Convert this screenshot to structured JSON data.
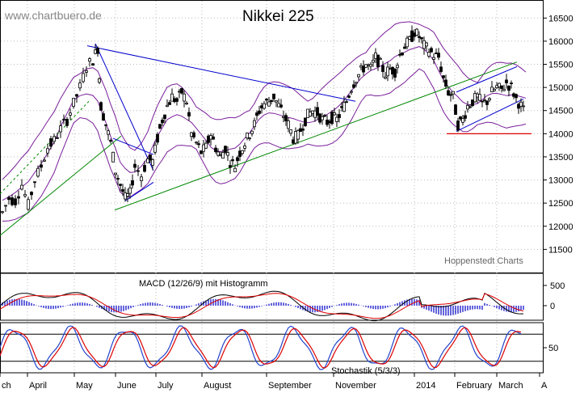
{
  "chart_data": [
    {
      "type": "candlestick",
      "title": "Nikkei 225",
      "watermark": "www.chartbuero.de",
      "credit": "Hoppenstedt Charts",
      "ylim": [
        11000,
        16750
      ],
      "yticks": [
        11500,
        12000,
        12500,
        13000,
        13500,
        14000,
        14500,
        15000,
        15500,
        16000,
        16500
      ],
      "trend_lines": [
        {
          "name": "downtrend-upper",
          "color": "#0000cc",
          "from": [
            "May",
            "15900"
          ],
          "to": [
            "November",
            "14700"
          ]
        },
        {
          "name": "uptrend-support",
          "color": "#008800",
          "from": [
            "June",
            "12350"
          ],
          "to": [
            "March",
            "15550"
          ]
        },
        {
          "name": "support-14000",
          "color": "#dd0000",
          "level": 14000
        }
      ],
      "path_points": [
        [
          0,
          12300
        ],
        [
          8,
          12600
        ],
        [
          16,
          12550
        ],
        [
          24,
          12900
        ],
        [
          32,
          12450
        ],
        [
          40,
          13000
        ],
        [
          48,
          13300
        ],
        [
          56,
          13700
        ],
        [
          64,
          13850
        ],
        [
          72,
          14100
        ],
        [
          80,
          14300
        ],
        [
          88,
          14650
        ],
        [
          96,
          15000
        ],
        [
          104,
          15450
        ],
        [
          112,
          15600
        ],
        [
          118,
          15850
        ],
        [
          122,
          14600
        ],
        [
          128,
          14200
        ],
        [
          134,
          13800
        ],
        [
          140,
          13200
        ],
        [
          146,
          12900
        ],
        [
          152,
          12600
        ],
        [
          158,
          12700
        ],
        [
          164,
          13300
        ],
        [
          172,
          13100
        ],
        [
          180,
          13450
        ],
        [
          186,
          13400
        ],
        [
          192,
          13900
        ],
        [
          198,
          14300
        ],
        [
          204,
          14600
        ],
        [
          210,
          14800
        ],
        [
          216,
          14700
        ],
        [
          222,
          14900
        ],
        [
          228,
          14700
        ],
        [
          234,
          14000
        ],
        [
          240,
          13800
        ],
        [
          246,
          13600
        ],
        [
          252,
          13700
        ],
        [
          258,
          14000
        ],
        [
          264,
          13700
        ],
        [
          270,
          13500
        ],
        [
          276,
          13700
        ],
        [
          282,
          13400
        ],
        [
          288,
          13300
        ],
        [
          294,
          13600
        ],
        [
          300,
          13800
        ],
        [
          306,
          14000
        ],
        [
          312,
          14200
        ],
        [
          318,
          14500
        ],
        [
          324,
          14650
        ],
        [
          330,
          14700
        ],
        [
          336,
          14800
        ],
        [
          342,
          14600
        ],
        [
          348,
          14400
        ],
        [
          354,
          14200
        ],
        [
          360,
          13900
        ],
        [
          366,
          13950
        ],
        [
          372,
          14200
        ],
        [
          378,
          14400
        ],
        [
          384,
          14500
        ],
        [
          390,
          14450
        ],
        [
          396,
          14300
        ],
        [
          402,
          14250
        ],
        [
          408,
          14350
        ],
        [
          414,
          14300
        ],
        [
          420,
          14500
        ],
        [
          426,
          14700
        ],
        [
          432,
          15000
        ],
        [
          438,
          15200
        ],
        [
          444,
          15350
        ],
        [
          450,
          15500
        ],
        [
          456,
          15400
        ],
        [
          462,
          15650
        ],
        [
          468,
          15500
        ],
        [
          474,
          15300
        ],
        [
          480,
          15400
        ],
        [
          486,
          15350
        ],
        [
          492,
          15700
        ],
        [
          498,
          15900
        ],
        [
          504,
          16000
        ],
        [
          510,
          16200
        ],
        [
          516,
          16100
        ],
        [
          522,
          15900
        ],
        [
          528,
          15800
        ],
        [
          534,
          15700
        ],
        [
          540,
          15650
        ],
        [
          546,
          15200
        ],
        [
          552,
          14900
        ],
        [
          558,
          14800
        ],
        [
          564,
          14200
        ],
        [
          570,
          14300
        ],
        [
          576,
          14600
        ],
        [
          582,
          14700
        ],
        [
          588,
          14800
        ],
        [
          594,
          14650
        ],
        [
          600,
          14700
        ],
        [
          606,
          14900
        ],
        [
          612,
          15000
        ],
        [
          618,
          14950
        ],
        [
          624,
          15100
        ],
        [
          630,
          15000
        ],
        [
          636,
          14750
        ],
        [
          642,
          14600
        ],
        [
          648,
          14400
        ]
      ],
      "x_labels": [
        "ch",
        "April",
        "May",
        "June",
        "July",
        "August",
        "September",
        "November",
        "2014",
        "February",
        "March",
        "A"
      ]
    },
    {
      "type": "line",
      "title": "MACD (12/26/9) mit Histogramm",
      "yticks": [
        500,
        0
      ]
    },
    {
      "type": "line",
      "title": "Stochastik (5/3/3)",
      "yticks": [
        50
      ],
      "levels": [
        80,
        20
      ]
    }
  ],
  "colors": {
    "candles": "#000000",
    "bollinger": "#7a1f9a",
    "macd_line": "#000000",
    "signal_line": "#dd0000",
    "histogram": "#2222cc",
    "stoch_k": "#2244cc",
    "stoch_d": "#dd0000",
    "grid": "#bbbbbb"
  }
}
